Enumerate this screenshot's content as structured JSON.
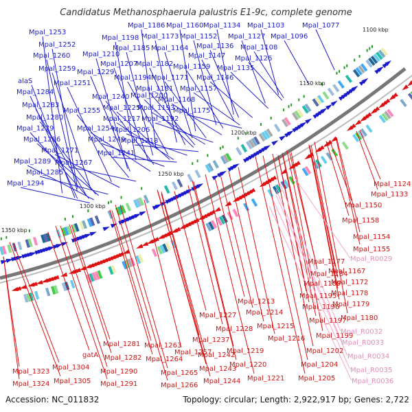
{
  "title": "Candidatus Methanosphaerula palustris E1-9c, complete genome",
  "footer": {
    "accession": "Accession: NC_011832",
    "summary": "Topology: circular; Length: 2,922,917 bp; Genes: 2,722"
  },
  "colors": {
    "blue": "#1a1acc",
    "red": "#dd1111",
    "pink": "#f4a8cf",
    "backbone": "#888888",
    "tick": "#229922"
  },
  "ticks": [
    "1100 kbp",
    "1150 kbp",
    "1200 kbp",
    "1250 kbp",
    "1300 kbp",
    "1350 kbp"
  ],
  "labels_top": [
    "Mpal_1186",
    "Mpal_1160",
    "Mpal_1134",
    "Mpal_1103",
    "Mpal_1077",
    "Mpal_1253",
    "Mpal_1198",
    "Mpal_1173",
    "Mpal_1152",
    "Mpal_1127",
    "Mpal_1096",
    "Mpal_1252",
    "Mpal_1185",
    "Mpal_1164",
    "Mpal_1136",
    "Mpal_1108",
    "Mpal_1260",
    "Mpal_1210",
    "Mpal_1147",
    "Mpal_1126",
    "Mpal_1207",
    "Mpal_1182",
    "Mpal_1159",
    "Mpal_1135",
    "Mpal_1259",
    "Mpal_1229",
    "Mpal_1194",
    "Mpal_1171",
    "Mpal_1146",
    "alaS",
    "Mpal_1251",
    "Mpal_1181",
    "Mpal_1157",
    "Mpal_1284",
    "Mpal_1240",
    "Mpal_1200",
    "Mpal_1168",
    "Mpal_1283",
    "Mpal_1255",
    "Mpal_1225",
    "Mpal_1193",
    "Mpal_1175",
    "Mpal_1280",
    "Mpal_1217",
    "Mpal_1192",
    "Mpal_1279",
    "Mpal_1254",
    "Mpal_1206",
    "Mpal_1286",
    "Mpal_1249",
    "Mpal_1218",
    "Mpal_1271",
    "Mpal_1241",
    "Mpal_1289",
    "Mpal_1267",
    "Mpal_1285",
    "Mpal_1294"
  ],
  "labels_bottom": [
    "Mpal_1124",
    "Mpal_1133",
    "Mpal_1150",
    "Mpal_1158",
    "Mpal_1154",
    "Mpal_1155",
    "Mpal_1177",
    "Mpal_1167",
    "Mpal_1184",
    "Mpal_1172",
    "Mpal_1189",
    "Mpal_1195",
    "Mpal_1178",
    "Mpal_1213",
    "Mpal_1179",
    "Mpal_1196",
    "Mpal_1227",
    "Mpal_1214",
    "Mpal_1180",
    "Mpal_1197",
    "Mpal_1228",
    "Mpal_1215",
    "Mpal_1199",
    "Mpal_1216",
    "Mpal_1257",
    "Mpal_1237",
    "Mpal_1281",
    "Mpal_1263",
    "Mpal_1219",
    "Mpal_1202",
    "gatA",
    "Mpal_1282",
    "Mpal_1264",
    "Mpal_1242",
    "Mpal_1220",
    "Mpal_1204",
    "Mpal_1323",
    "Mpal_1304",
    "Mpal_1290",
    "Mpal_1265",
    "Mpal_1243",
    "Mpal_1221",
    "Mpal_1205",
    "Mpal_1324",
    "Mpal_1305",
    "Mpal_1291",
    "Mpal_1266",
    "Mpal_1244"
  ],
  "labels_rna": [
    "Mpal_R0029",
    "Mpal_R0032",
    "Mpal_R0033",
    "Mpal_R0034",
    "Mpal_R0035",
    "Mpal_R0036"
  ]
}
